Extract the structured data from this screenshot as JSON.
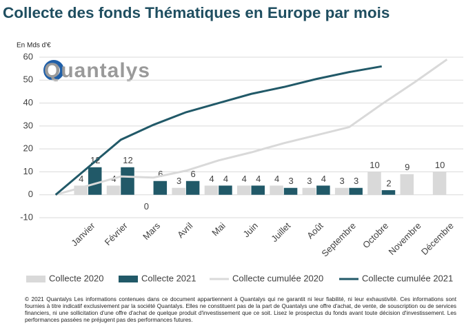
{
  "chart_data": {
    "type": "combo",
    "title": "Collecte des fonds Thématiques en Europe par mois",
    "y_label": "En Mds d'€",
    "logo": "Quantalys",
    "categories": [
      null,
      "Janvier",
      "Février",
      "Mars",
      "Avril",
      "Mai",
      "Juin",
      "Juillet",
      "Août",
      "Septembre",
      "Octobre",
      "Novembre",
      "Décembre"
    ],
    "series": [
      {
        "name": "Collecte 2020",
        "type": "bar",
        "color": "#d9d9d9",
        "values": [
          null,
          4,
          4,
          0,
          3,
          4,
          4,
          4,
          3,
          3,
          10,
          9,
          10
        ]
      },
      {
        "name": "Collecte 2021",
        "type": "bar",
        "color": "#215968",
        "values": [
          null,
          12,
          12,
          6,
          6,
          4,
          4,
          3,
          4,
          3,
          2,
          null,
          null
        ]
      },
      {
        "name": "Collecte cumulée 2020",
        "type": "line",
        "color": "#d9d9d9",
        "values": [
          0,
          4,
          8,
          7.5,
          10.5,
          15,
          18.5,
          22.5,
          26,
          29.5,
          39.5,
          49,
          59
        ]
      },
      {
        "name": "Collecte cumulée 2021",
        "type": "line",
        "color": "#215968",
        "values": [
          0,
          12,
          24,
          30.5,
          36,
          40,
          44,
          47,
          50.5,
          53.5,
          56,
          null,
          null
        ]
      }
    ],
    "ylim": [
      -10,
      60
    ],
    "yticks": [
      -10,
      0,
      10,
      20,
      30,
      40,
      50,
      60
    ],
    "grid": true,
    "footnote": "© 2021 Quantalys Les informations contenues dans ce document appartiennent à Quantalys qui ne garantit ni leur fiabilité, ni leur exhaustivité. Ces informations sont fournies à titre indicatif exclusivement par la société Quantalys. Elles ne constituent pas de la part de Quantalys une offre d'achat, de vente, de souscription ou de services financiers, ni une sollicitation d'une offre d'achat de quelque produit d'investissement que ce soit. Lisez le prospectus du fonds avant toute décision d'investissement. Les performances passées ne préjugent pas des performances futures."
  }
}
